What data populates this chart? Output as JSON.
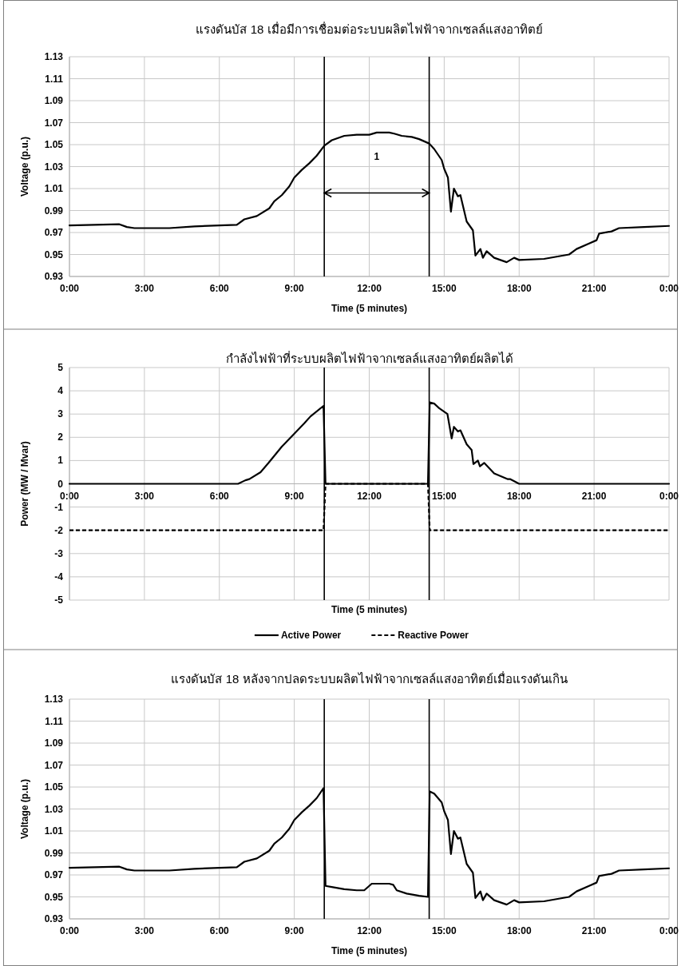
{
  "chart_data": [
    {
      "type": "line",
      "title": "แรงดันบัส 18 เมื่อมีการเชื่อมต่อระบบผลิตไฟฟ้าจากเซลล์แสงอาทิตย์",
      "xlabel": "Time (5 minutes)",
      "ylabel": "Voltage (p.u.)",
      "xlim": [
        0,
        24
      ],
      "xticks": [
        {
          "value": 0,
          "label": "0:00"
        },
        {
          "value": 3,
          "label": "3:00"
        },
        {
          "value": 6,
          "label": "6:00"
        },
        {
          "value": 9,
          "label": "9:00"
        },
        {
          "value": 12,
          "label": "12:00"
        },
        {
          "value": 15,
          "label": "15:00"
        },
        {
          "value": 18,
          "label": "18:00"
        },
        {
          "value": 21,
          "label": "21:00"
        },
        {
          "value": 24,
          "label": "0:00"
        }
      ],
      "ylim": [
        0.93,
        1.13
      ],
      "yticks": [
        0.93,
        0.95,
        0.97,
        0.99,
        1.01,
        1.03,
        1.05,
        1.07,
        1.09,
        1.11,
        1.13
      ],
      "grid": true,
      "ref_lines": [
        {
          "axis": "x",
          "value": 10.2,
          "color": "#000000"
        },
        {
          "axis": "x",
          "value": 14.4,
          "color": "#000000"
        }
      ],
      "annotations": [
        "1"
      ],
      "series": [
        {
          "color": "#000000",
          "x": [
            0,
            1,
            2,
            2.3,
            2.6,
            4,
            5,
            6,
            6.7,
            7,
            7.5,
            8,
            8.2,
            8.5,
            8.8,
            9,
            9.3,
            9.6,
            9.9,
            10.2,
            10.5,
            11,
            11.5,
            12,
            12.3,
            12.8,
            13,
            13.3,
            13.7,
            14,
            14.4,
            14.6,
            14.9,
            15.0,
            15.15,
            15.27,
            15.39,
            15.55,
            15.65,
            15.9,
            16.15,
            16.25,
            16.45,
            16.55,
            16.7,
            17,
            17.5,
            17.8,
            18,
            19,
            19.5,
            20,
            20.3,
            20.8,
            21.1,
            21.2,
            21.7,
            22,
            23,
            24
          ],
          "values": [
            0.9765,
            0.977,
            0.9775,
            0.975,
            0.974,
            0.974,
            0.9755,
            0.9765,
            0.977,
            0.982,
            0.985,
            0.992,
            0.9985,
            1.004,
            1.012,
            1.02,
            1.027,
            1.033,
            1.04,
            1.049,
            1.054,
            1.058,
            1.059,
            1.059,
            1.061,
            1.061,
            1.06,
            1.058,
            1.057,
            1.055,
            1.051,
            1.046,
            1.036,
            1.028,
            1.02,
            0.989,
            1.01,
            1.003,
            1.004,
            0.98,
            0.972,
            0.949,
            0.955,
            0.947,
            0.953,
            0.947,
            0.943,
            0.947,
            0.945,
            0.946,
            0.948,
            0.95,
            0.955,
            0.96,
            0.963,
            0.969,
            0.971,
            0.974,
            0.975,
            0.976
          ]
        }
      ]
    },
    {
      "type": "line",
      "title": "กำลังไฟฟ้าที่ระบบผลิตไฟฟ้าจากเซลล์แสงอาทิตย์ผลิตได้",
      "xlabel": "Time (5 minutes)",
      "ylabel": "Power (MW / Mvar)",
      "xlim": [
        0,
        24
      ],
      "xticks": [
        {
          "value": 0,
          "label": "0:00"
        },
        {
          "value": 3,
          "label": "3:00"
        },
        {
          "value": 6,
          "label": "6:00"
        },
        {
          "value": 9,
          "label": "9:00"
        },
        {
          "value": 12,
          "label": "12:00"
        },
        {
          "value": 15,
          "label": "15:00"
        },
        {
          "value": 18,
          "label": "18:00"
        },
        {
          "value": 21,
          "label": "21:00"
        },
        {
          "value": 24,
          "label": "0:00"
        }
      ],
      "ylim": [
        -5,
        5
      ],
      "yticks": [
        -5,
        -4,
        -3,
        -2,
        -1,
        0,
        1,
        2,
        3,
        4,
        5
      ],
      "grid": true,
      "legend": "bottom",
      "ref_lines": [
        {
          "axis": "x",
          "value": 10.2,
          "color": "#000000"
        },
        {
          "axis": "x",
          "value": 14.4,
          "color": "#000000"
        }
      ],
      "series": [
        {
          "name": "Active Power",
          "color": "#000000",
          "line_style": "solid",
          "x": [
            0,
            6.75,
            7.04,
            7.2,
            7.65,
            7.97,
            8.5,
            9.04,
            9.4,
            9.65,
            10.17,
            10.25,
            14.35,
            14.42,
            14.6,
            14.8,
            15.13,
            15.3,
            15.39,
            15.55,
            15.65,
            15.9,
            16.1,
            16.17,
            16.35,
            16.43,
            16.6,
            17.0,
            17.55,
            17.65,
            18.0,
            24
          ],
          "values": [
            0,
            0,
            0.15,
            0.2,
            0.5,
            0.9,
            1.6,
            2.2,
            2.6,
            2.9,
            3.35,
            0,
            0,
            3.5,
            3.45,
            3.25,
            3.0,
            1.95,
            2.45,
            2.25,
            2.3,
            1.7,
            1.45,
            0.85,
            1.0,
            0.75,
            0.9,
            0.45,
            0.2,
            0.2,
            0,
            0
          ]
        },
        {
          "name": "Reactive Power",
          "color": "#000000",
          "line_style": "dashed",
          "x": [
            0,
            10.17,
            10.25,
            14.35,
            14.42,
            24
          ],
          "values": [
            -2,
            -2,
            0,
            0,
            -2,
            -2
          ]
        }
      ]
    },
    {
      "type": "line",
      "title": "แรงดันบัส 18 หลังจากปลดระบบผลิตไฟฟ้าจากเซลล์แสงอาทิตย์เมื่อแรงดันเกิน",
      "xlabel": "Time (5 minutes)",
      "ylabel": "Voltage (p.u.)",
      "xlim": [
        0,
        24
      ],
      "xticks": [
        {
          "value": 0,
          "label": "0:00"
        },
        {
          "value": 3,
          "label": "3:00"
        },
        {
          "value": 6,
          "label": "6:00"
        },
        {
          "value": 9,
          "label": "9:00"
        },
        {
          "value": 12,
          "label": "12:00"
        },
        {
          "value": 15,
          "label": "15:00"
        },
        {
          "value": 18,
          "label": "18:00"
        },
        {
          "value": 21,
          "label": "21:00"
        },
        {
          "value": 24,
          "label": "0:00"
        }
      ],
      "ylim": [
        0.93,
        1.13
      ],
      "yticks": [
        0.93,
        0.95,
        0.97,
        0.99,
        1.01,
        1.03,
        1.05,
        1.07,
        1.09,
        1.11,
        1.13
      ],
      "grid": true,
      "ref_lines": [
        {
          "axis": "x",
          "value": 10.2,
          "color": "#000000"
        },
        {
          "axis": "x",
          "value": 14.4,
          "color": "#000000"
        }
      ],
      "series": [
        {
          "color": "#000000",
          "x": [
            0,
            1,
            2,
            2.3,
            2.6,
            4,
            5,
            6,
            6.7,
            7,
            7.5,
            8,
            8.2,
            8.5,
            8.8,
            9,
            9.3,
            9.6,
            9.9,
            10.17,
            10.25,
            10.5,
            11,
            11.5,
            11.8,
            11.9,
            12.1,
            12.8,
            12.96,
            13.1,
            13.5,
            14,
            14.35,
            14.42,
            14.6,
            14.9,
            15.0,
            15.15,
            15.27,
            15.39,
            15.55,
            15.65,
            15.9,
            16.15,
            16.25,
            16.45,
            16.55,
            16.7,
            17,
            17.5,
            17.8,
            18,
            19,
            19.5,
            20,
            20.3,
            20.8,
            21.1,
            21.2,
            21.7,
            22,
            23,
            24
          ],
          "values": [
            0.9765,
            0.977,
            0.9775,
            0.975,
            0.974,
            0.974,
            0.9755,
            0.9765,
            0.977,
            0.982,
            0.985,
            0.992,
            0.9985,
            1.004,
            1.012,
            1.02,
            1.027,
            1.033,
            1.04,
            1.049,
            0.96,
            0.959,
            0.957,
            0.956,
            0.956,
            0.958,
            0.962,
            0.962,
            0.961,
            0.956,
            0.953,
            0.951,
            0.95,
            1.046,
            1.044,
            1.036,
            1.028,
            1.02,
            0.989,
            1.01,
            1.003,
            1.004,
            0.98,
            0.972,
            0.949,
            0.955,
            0.947,
            0.953,
            0.947,
            0.943,
            0.947,
            0.945,
            0.946,
            0.948,
            0.95,
            0.955,
            0.96,
            0.963,
            0.969,
            0.971,
            0.974,
            0.975,
            0.976
          ]
        }
      ]
    }
  ]
}
